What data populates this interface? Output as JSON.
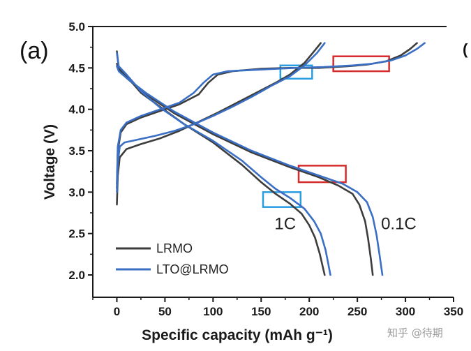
{
  "panel_label": "(a)",
  "watermark": "知乎 @待期",
  "right_edge_glyph": "(",
  "colors": {
    "LRMO": "#3d3d3d",
    "LTO@LRMO": "#3a6fc4",
    "red_box": "#d62b2b",
    "blue_box": "#2a9de0",
    "axis": "#1a1a1a"
  },
  "chart_data": {
    "type": "line",
    "title": "",
    "xlabel": "Specific capacity (mAh g⁻¹)",
    "ylabel": "Voltage (V)",
    "xlim": [
      -25,
      350
    ],
    "ylim": [
      2.0,
      5.0
    ],
    "xticks": [
      0,
      50,
      100,
      150,
      200,
      250,
      300,
      350
    ],
    "yticks": [
      2.0,
      2.5,
      3.0,
      3.5,
      4.0,
      4.5,
      5.0
    ],
    "xtick_labels": [
      "0",
      "50",
      "100",
      "150",
      "200",
      "250",
      "300",
      "350"
    ],
    "ytick_labels": [
      "2.0",
      "2.5",
      "3.0",
      "3.5",
      "4.0",
      "4.5",
      "5.0"
    ],
    "grid": false,
    "legend_position": "bottom-left",
    "legend": [
      "LRMO",
      "LTO@LRMO"
    ],
    "rate_labels": [
      {
        "text": "1C",
        "x": 175,
        "y": 2.55
      },
      {
        "text": "0.1C",
        "x": 293,
        "y": 2.55
      }
    ],
    "series": [
      {
        "name": "LRMO",
        "color": "#3d3d3d",
        "curve": "1C charge",
        "x": [
          0,
          1,
          3,
          10,
          25,
          45,
          65,
          85,
          105,
          125,
          145,
          165,
          180,
          195,
          205,
          212
        ],
        "y": [
          2.85,
          3.2,
          3.42,
          3.52,
          3.58,
          3.65,
          3.74,
          3.85,
          3.96,
          4.08,
          4.2,
          4.32,
          4.42,
          4.56,
          4.7,
          4.8
        ]
      },
      {
        "name": "LRMO",
        "color": "#3d3d3d",
        "curve": "1C discharge",
        "x": [
          0,
          2,
          10,
          25,
          45,
          70,
          100,
          130,
          150,
          165,
          180,
          192,
          200,
          206,
          211,
          214,
          216
        ],
        "y": [
          4.7,
          4.5,
          4.4,
          4.2,
          4.03,
          3.82,
          3.6,
          3.33,
          3.12,
          2.98,
          2.86,
          2.74,
          2.6,
          2.45,
          2.25,
          2.1,
          2.0
        ]
      },
      {
        "name": "LRMO",
        "color": "#3d3d3d",
        "curve": "0.1C charge",
        "x": [
          0,
          1,
          4,
          10,
          25,
          45,
          65,
          85,
          95,
          105,
          120,
          150,
          180,
          210,
          240,
          260,
          280,
          295,
          305,
          312
        ],
        "y": [
          3.05,
          3.5,
          3.72,
          3.82,
          3.9,
          3.98,
          4.06,
          4.18,
          4.32,
          4.42,
          4.46,
          4.49,
          4.5,
          4.5,
          4.52,
          4.54,
          4.58,
          4.65,
          4.73,
          4.8
        ]
      },
      {
        "name": "LRMO",
        "color": "#3d3d3d",
        "curve": "0.1C discharge",
        "x": [
          0,
          2,
          10,
          30,
          60,
          100,
          140,
          180,
          210,
          230,
          245,
          252,
          258,
          261,
          264,
          266
        ],
        "y": [
          4.55,
          4.48,
          4.38,
          4.18,
          3.95,
          3.7,
          3.48,
          3.3,
          3.18,
          3.08,
          2.98,
          2.85,
          2.65,
          2.45,
          2.2,
          2.0
        ]
      },
      {
        "name": "LTO@LRMO",
        "color": "#3a6fc4",
        "curve": "1C charge",
        "x": [
          0,
          1,
          3,
          8,
          20,
          40,
          60,
          80,
          100,
          120,
          140,
          160,
          180,
          195,
          208,
          216
        ],
        "y": [
          3.0,
          3.35,
          3.55,
          3.6,
          3.63,
          3.68,
          3.74,
          3.82,
          3.92,
          4.03,
          4.15,
          4.28,
          4.4,
          4.53,
          4.68,
          4.8
        ]
      },
      {
        "name": "LTO@LRMO",
        "color": "#3a6fc4",
        "curve": "1C discharge",
        "x": [
          0,
          2,
          10,
          25,
          45,
          70,
          100,
          130,
          150,
          165,
          180,
          195,
          205,
          212,
          217,
          220,
          222
        ],
        "y": [
          4.68,
          4.52,
          4.42,
          4.22,
          4.02,
          3.82,
          3.62,
          3.38,
          3.18,
          3.04,
          2.93,
          2.8,
          2.65,
          2.5,
          2.3,
          2.12,
          2.0
        ]
      },
      {
        "name": "LTO@LRMO",
        "color": "#3a6fc4",
        "curve": "0.1C charge",
        "x": [
          0,
          1,
          4,
          10,
          25,
          45,
          65,
          80,
          90,
          100,
          115,
          150,
          185,
          215,
          245,
          265,
          285,
          300,
          312,
          320
        ],
        "y": [
          3.1,
          3.55,
          3.75,
          3.84,
          3.92,
          4.0,
          4.08,
          4.2,
          4.32,
          4.42,
          4.46,
          4.48,
          4.5,
          4.51,
          4.53,
          4.55,
          4.59,
          4.65,
          4.73,
          4.8
        ]
      },
      {
        "name": "LTO@LRMO",
        "color": "#3a6fc4",
        "curve": "0.1C discharge",
        "x": [
          0,
          2,
          10,
          30,
          60,
          100,
          140,
          180,
          210,
          235,
          250,
          260,
          266,
          270,
          273,
          276
        ],
        "y": [
          4.52,
          4.46,
          4.38,
          4.2,
          3.97,
          3.72,
          3.5,
          3.32,
          3.2,
          3.1,
          3.0,
          2.88,
          2.7,
          2.48,
          2.25,
          2.0
        ]
      }
    ],
    "highlight_boxes": [
      {
        "color": "red",
        "x0": 225,
        "x1": 283,
        "y0": 4.46,
        "y1": 4.64
      },
      {
        "color": "red",
        "x0": 189,
        "x1": 238,
        "y0": 3.12,
        "y1": 3.32
      },
      {
        "color": "blue",
        "x0": 170,
        "x1": 203,
        "y0": 4.37,
        "y1": 4.53
      },
      {
        "color": "blue",
        "x0": 152,
        "x1": 191,
        "y0": 2.82,
        "y1": 3.0
      }
    ]
  }
}
